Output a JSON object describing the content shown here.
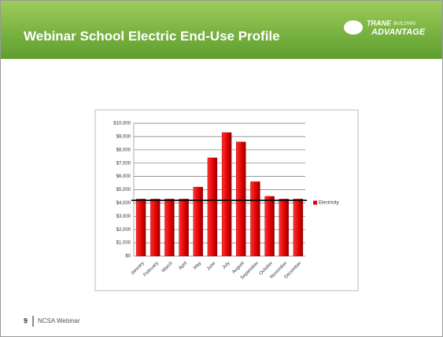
{
  "slide": {
    "title": "Webinar School Electric End-Use Profile",
    "logo_brand": "TRANE",
    "logo_small": "BUILDING",
    "logo_big": "ADVANTAGE",
    "page_number": "9",
    "footer": "NCSA Webinar"
  },
  "chart_data": {
    "type": "bar",
    "categories": [
      "January",
      "February",
      "March",
      "April",
      "May",
      "June",
      "July",
      "August",
      "September",
      "October",
      "November",
      "December"
    ],
    "series": [
      {
        "name": "Electricity",
        "color": "#e00000",
        "values": [
          4300,
          4300,
          4300,
          4300,
          5200,
          7400,
          9300,
          8600,
          5600,
          4500,
          4300,
          4300
        ]
      }
    ],
    "reference_line": 4200,
    "ylim": [
      0,
      10000
    ],
    "yticks": [
      {
        "value": 0,
        "label": "$0"
      },
      {
        "value": 1000,
        "label": "$1,000"
      },
      {
        "value": 2000,
        "label": "$2,000"
      },
      {
        "value": 3000,
        "label": "$3,000"
      },
      {
        "value": 4000,
        "label": "$4,000"
      },
      {
        "value": 5000,
        "label": "$5,000"
      },
      {
        "value": 6000,
        "label": "$6,000"
      },
      {
        "value": 7000,
        "label": "$7,000"
      },
      {
        "value": 8000,
        "label": "$8,000"
      },
      {
        "value": 9000,
        "label": "$9,000"
      },
      {
        "value": 10000,
        "label": "$10,000"
      }
    ],
    "grid": true,
    "legend": "right"
  }
}
